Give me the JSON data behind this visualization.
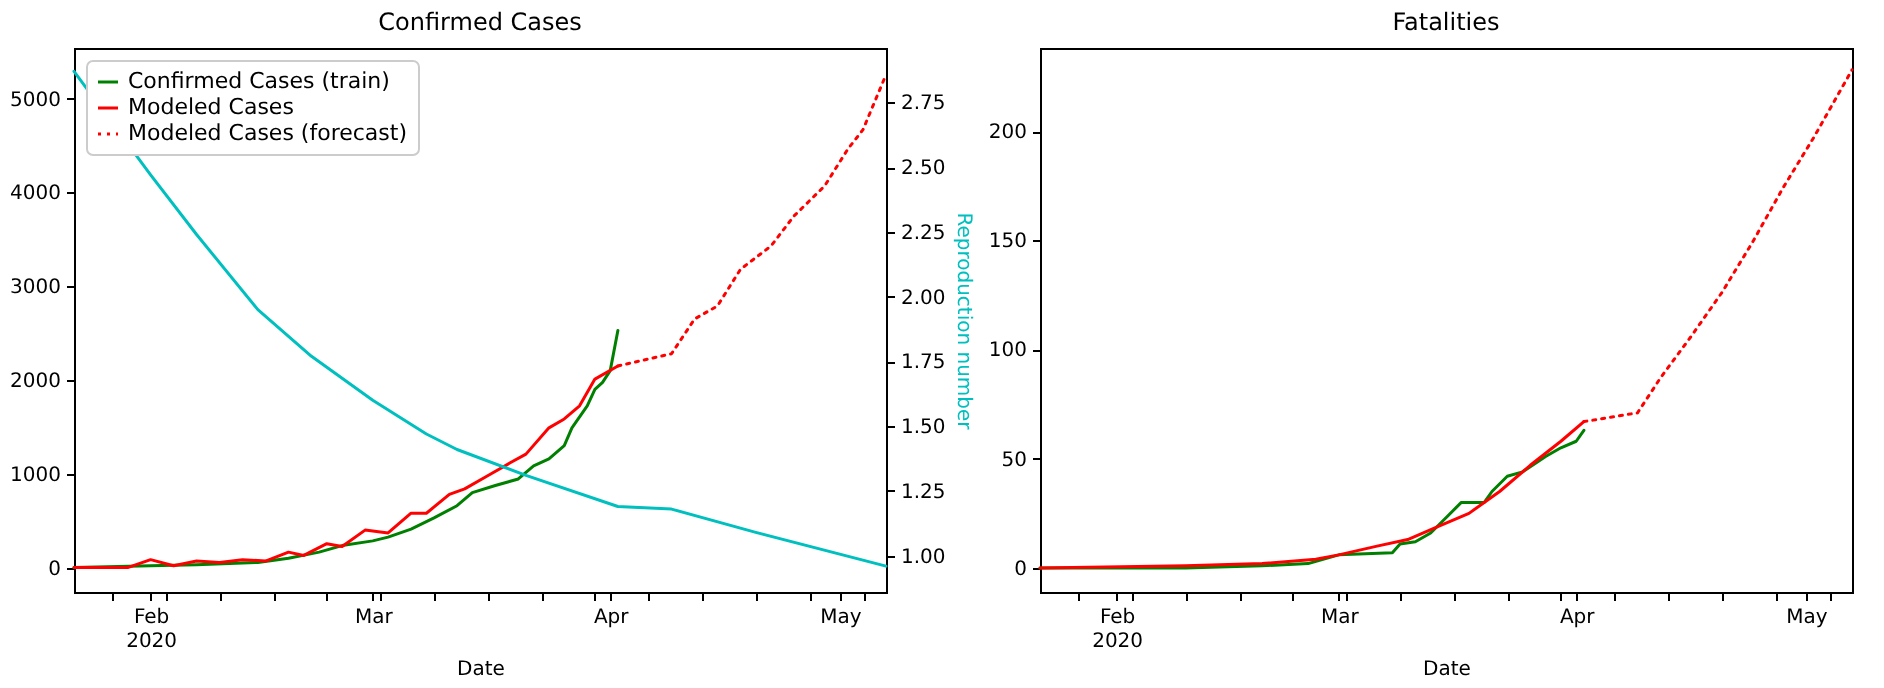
{
  "chart_data": [
    {
      "type": "line",
      "title": "Confirmed Cases",
      "xlabel": "Date",
      "y2label": "Reproduction number",
      "legend": "top left",
      "xlim": [
        "2020-01-22",
        "2020-05-07"
      ],
      "xticks": [
        {
          "value": "2020-01-27",
          "label": null
        },
        {
          "value": "2020-02-01",
          "label": "Feb\n2020"
        },
        {
          "value": "2020-02-03",
          "label": null
        },
        {
          "value": "2020-02-10",
          "label": null
        },
        {
          "value": "2020-02-17",
          "label": null
        },
        {
          "value": "2020-02-24",
          "label": null
        },
        {
          "value": "2020-03-01",
          "label": "Mar"
        },
        {
          "value": "2020-03-02",
          "label": null
        },
        {
          "value": "2020-03-09",
          "label": null
        },
        {
          "value": "2020-03-16",
          "label": null
        },
        {
          "value": "2020-03-23",
          "label": null
        },
        {
          "value": "2020-03-30",
          "label": null
        },
        {
          "value": "2020-04-01",
          "label": "Apr"
        },
        {
          "value": "2020-04-06",
          "label": null
        },
        {
          "value": "2020-04-13",
          "label": null
        },
        {
          "value": "2020-04-20",
          "label": null
        },
        {
          "value": "2020-04-27",
          "label": null
        },
        {
          "value": "2020-05-01",
          "label": "May"
        },
        {
          "value": "2020-05-04",
          "label": null
        }
      ],
      "ylim": [
        -260,
        5540
      ],
      "yticks": [
        0,
        1000,
        2000,
        3000,
        4000,
        5000
      ],
      "y2lim": [
        0.86,
        2.96
      ],
      "y2ticks": [
        {
          "value": 1,
          "label": "1.00"
        },
        {
          "value": 1.25,
          "label": "1.25"
        },
        {
          "value": 1.5,
          "label": "1.50"
        },
        {
          "value": 1.75,
          "label": "1.75"
        },
        {
          "value": 2,
          "label": "2.00"
        },
        {
          "value": 2.25,
          "label": "2.25"
        },
        {
          "value": 2.5,
          "label": "2.50"
        },
        {
          "value": 2.75,
          "label": "2.75"
        }
      ],
      "series": [
        {
          "name": "Confirmed Cases (train)",
          "color": "#008000",
          "x": [
            "2020-01-22",
            "2020-02-01",
            "2020-02-07",
            "2020-02-15",
            "2020-02-19",
            "2020-02-23",
            "2020-02-26",
            "2020-03-01",
            "2020-03-03",
            "2020-03-06",
            "2020-03-09",
            "2020-03-12",
            "2020-03-14",
            "2020-03-17",
            "2020-03-20",
            "2020-03-22",
            "2020-03-24",
            "2020-03-26",
            "2020-03-27",
            "2020-03-29",
            "2020-03-30",
            "2020-03-31",
            "2020-04-01",
            "2020-04-02"
          ],
          "values": [
            0,
            20,
            30,
            55,
            100,
            165,
            235,
            285,
            325,
            410,
            530,
            660,
            800,
            875,
            945,
            1085,
            1160,
            1300,
            1490,
            1725,
            1900,
            1975,
            2100,
            2528
          ]
        },
        {
          "name": "Modeled Cases",
          "color": "#ff0000",
          "x": [
            "2020-01-22",
            "2020-01-29",
            "2020-02-01",
            "2020-02-04",
            "2020-02-07",
            "2020-02-10",
            "2020-02-13",
            "2020-02-16",
            "2020-02-19",
            "2020-02-21",
            "2020-02-24",
            "2020-02-26",
            "2020-02-29",
            "2020-03-03",
            "2020-03-06",
            "2020-03-08",
            "2020-03-11",
            "2020-03-13",
            "2020-03-16",
            "2020-03-19",
            "2020-03-21",
            "2020-03-24",
            "2020-03-26",
            "2020-03-28",
            "2020-03-30",
            "2020-04-02"
          ],
          "values": [
            0,
            0,
            85,
            20,
            70,
            55,
            85,
            70,
            165,
            130,
            255,
            225,
            400,
            370,
            580,
            580,
            780,
            840,
            980,
            1120,
            1210,
            1490,
            1585,
            1725,
            2010,
            2150
          ]
        },
        {
          "name": "Modeled Cases (forecast)",
          "color": "#ff0000",
          "line_style": "dotted",
          "x": [
            "2020-04-02",
            "2020-04-09",
            "2020-04-12",
            "2020-04-15",
            "2020-04-18",
            "2020-04-22",
            "2020-04-25",
            "2020-04-29",
            "2020-05-02",
            "2020-05-04",
            "2020-05-07"
          ],
          "values": [
            2150,
            2280,
            2650,
            2790,
            3180,
            3430,
            3750,
            4070,
            4460,
            4670,
            5255
          ]
        },
        {
          "color": "#00bfbf",
          "axis": "y2",
          "x": [
            "2020-01-22",
            "2020-02-01",
            "2020-02-07",
            "2020-02-15",
            "2020-02-22",
            "2020-03-01",
            "2020-03-08",
            "2020-03-12",
            "2020-03-21",
            "2020-04-02",
            "2020-04-09",
            "2020-04-20",
            "2020-05-07"
          ],
          "values": [
            2.87,
            2.47,
            2.24,
            1.95,
            1.77,
            1.6,
            1.47,
            1.41,
            1.31,
            1.19,
            1.18,
            1.09,
            0.96
          ]
        }
      ]
    },
    {
      "type": "line",
      "title": "Fatalities",
      "xlabel": "Date",
      "xlim": [
        "2020-01-22",
        "2020-05-07"
      ],
      "xticks": [
        {
          "value": "2020-01-27",
          "label": null
        },
        {
          "value": "2020-02-01",
          "label": "Feb\n2020"
        },
        {
          "value": "2020-02-03",
          "label": null
        },
        {
          "value": "2020-02-10",
          "label": null
        },
        {
          "value": "2020-02-17",
          "label": null
        },
        {
          "value": "2020-02-24",
          "label": null
        },
        {
          "value": "2020-03-01",
          "label": "Mar"
        },
        {
          "value": "2020-03-02",
          "label": null
        },
        {
          "value": "2020-03-09",
          "label": null
        },
        {
          "value": "2020-03-16",
          "label": null
        },
        {
          "value": "2020-03-23",
          "label": null
        },
        {
          "value": "2020-03-30",
          "label": null
        },
        {
          "value": "2020-04-01",
          "label": "Apr"
        },
        {
          "value": "2020-04-06",
          "label": null
        },
        {
          "value": "2020-04-13",
          "label": null
        },
        {
          "value": "2020-04-20",
          "label": null
        },
        {
          "value": "2020-04-27",
          "label": null
        },
        {
          "value": "2020-05-01",
          "label": "May"
        },
        {
          "value": "2020-05-04",
          "label": null
        }
      ],
      "ylim": [
        -11,
        238
      ],
      "yticks": [
        0,
        50,
        100,
        150,
        200
      ],
      "series": [
        {
          "color": "#008000",
          "x": [
            "2020-01-22",
            "2020-02-10",
            "2020-02-20",
            "2020-02-26",
            "2020-03-01",
            "2020-03-08",
            "2020-03-09",
            "2020-03-11",
            "2020-03-13",
            "2020-03-15",
            "2020-03-17",
            "2020-03-20",
            "2020-03-21",
            "2020-03-23",
            "2020-03-25",
            "2020-03-28",
            "2020-03-30",
            "2020-04-01",
            "2020-04-02"
          ],
          "values": [
            0,
            0,
            1,
            2,
            6,
            7,
            11,
            12,
            16,
            23,
            30,
            30,
            35,
            42,
            44,
            51,
            55,
            58,
            63
          ]
        },
        {
          "color": "#ff0000",
          "x": [
            "2020-01-22",
            "2020-02-10",
            "2020-02-20",
            "2020-02-27",
            "2020-03-01",
            "2020-03-06",
            "2020-03-10",
            "2020-03-14",
            "2020-03-18",
            "2020-03-22",
            "2020-03-26",
            "2020-03-30",
            "2020-04-02"
          ],
          "values": [
            0,
            1,
            2,
            4,
            6,
            10,
            13,
            19,
            25,
            35,
            47,
            58,
            67
          ]
        },
        {
          "color": "#ff0000",
          "line_style": "dotted",
          "x": [
            "2020-04-02",
            "2020-04-09",
            "2020-04-12",
            "2020-04-16",
            "2020-04-20",
            "2020-04-24",
            "2020-04-28",
            "2020-05-02",
            "2020-05-07"
          ],
          "values": [
            67,
            71,
            87,
            106,
            126,
            149,
            174,
            197,
            228
          ]
        }
      ]
    }
  ]
}
